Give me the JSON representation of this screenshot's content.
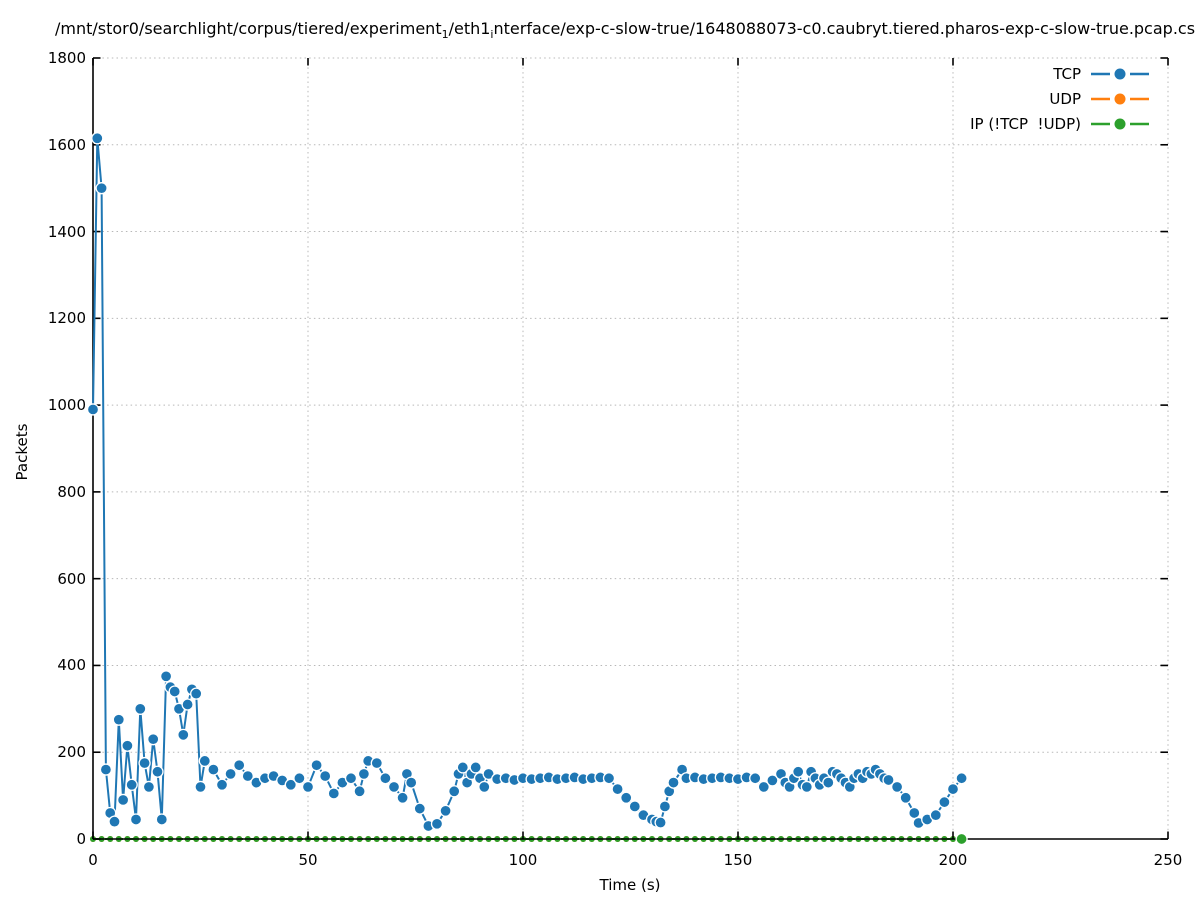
{
  "figure": {
    "title_parts": [
      {
        "text": "/mnt/stor0/searchlight/corpus/tiered/experiment",
        "sub": false
      },
      {
        "text": "1",
        "sub": true
      },
      {
        "text": "/eth1",
        "sub": false
      },
      {
        "text": "i",
        "sub": true
      },
      {
        "text": "nterface/exp-c-slow-true/1648088073-c0.caubryt.tiered.pharos-exp-c-slow-true.pcap.cs",
        "sub": false
      }
    ],
    "xlabel": "Time (s)",
    "ylabel": "Packets"
  },
  "chart_data": {
    "type": "line",
    "title": "/mnt/stor0/searchlight/corpus/tiered/experiment₁/eth1ᵢnterface/exp-c-slow-true/1648088073-c0.caubryt.tiered.pharos-exp-c-slow-true.pcap.cs",
    "xlabel": "Time (s)",
    "ylabel": "Packets",
    "xlim": [
      0,
      250
    ],
    "ylim": [
      0,
      1800
    ],
    "xticks": [
      0,
      50,
      100,
      150,
      200,
      250
    ],
    "yticks": [
      0,
      200,
      400,
      600,
      800,
      1000,
      1200,
      1400,
      1600,
      1800
    ],
    "grid": true,
    "grid_style": "dotted",
    "legend_position": "top-right-inside",
    "colors": {
      "tcp": "#1f77b4",
      "udp": "#ff7f0e",
      "ip_other": "#2ca02c",
      "grid": "#b8b8b8",
      "axis": "#000000",
      "marker_edge": "#ffffff"
    },
    "series": [
      {
        "name": "TCP",
        "color_key": "tcp",
        "style": "line-with-dots",
        "points": [
          [
            0,
            990
          ],
          [
            1,
            1615
          ],
          [
            2,
            1500
          ],
          [
            3,
            160
          ],
          [
            4,
            60
          ],
          [
            5,
            40
          ],
          [
            6,
            275
          ],
          [
            7,
            90
          ],
          [
            8,
            215
          ],
          [
            9,
            125
          ],
          [
            10,
            45
          ],
          [
            11,
            300
          ],
          [
            12,
            175
          ],
          [
            13,
            120
          ],
          [
            14,
            230
          ],
          [
            15,
            155
          ],
          [
            16,
            45
          ],
          [
            17,
            375
          ],
          [
            18,
            350
          ],
          [
            19,
            340
          ],
          [
            20,
            300
          ],
          [
            21,
            240
          ],
          [
            22,
            310
          ],
          [
            23,
            345
          ],
          [
            24,
            335
          ],
          [
            25,
            120
          ],
          [
            26,
            180
          ],
          [
            28,
            160
          ],
          [
            30,
            125
          ],
          [
            32,
            150
          ],
          [
            34,
            170
          ],
          [
            36,
            145
          ],
          [
            38,
            130
          ],
          [
            40,
            140
          ],
          [
            42,
            145
          ],
          [
            44,
            135
          ],
          [
            46,
            125
          ],
          [
            48,
            140
          ],
          [
            50,
            120
          ],
          [
            52,
            170
          ],
          [
            54,
            145
          ],
          [
            56,
            105
          ],
          [
            58,
            130
          ],
          [
            60,
            140
          ],
          [
            62,
            110
          ],
          [
            63,
            150
          ],
          [
            64,
            180
          ],
          [
            66,
            175
          ],
          [
            68,
            140
          ],
          [
            70,
            120
          ],
          [
            72,
            95
          ],
          [
            73,
            150
          ],
          [
            74,
            130
          ],
          [
            76,
            70
          ],
          [
            78,
            30
          ],
          [
            80,
            35
          ],
          [
            82,
            65
          ],
          [
            84,
            110
          ],
          [
            85,
            150
          ],
          [
            86,
            165
          ],
          [
            87,
            130
          ],
          [
            88,
            150
          ],
          [
            89,
            165
          ],
          [
            90,
            140
          ],
          [
            91,
            120
          ],
          [
            92,
            150
          ],
          [
            94,
            138
          ],
          [
            96,
            140
          ],
          [
            98,
            136
          ],
          [
            100,
            140
          ],
          [
            102,
            138
          ],
          [
            104,
            140
          ],
          [
            106,
            142
          ],
          [
            108,
            138
          ],
          [
            110,
            140
          ],
          [
            112,
            142
          ],
          [
            114,
            138
          ],
          [
            116,
            140
          ],
          [
            118,
            142
          ],
          [
            120,
            140
          ],
          [
            122,
            115
          ],
          [
            124,
            95
          ],
          [
            126,
            75
          ],
          [
            128,
            55
          ],
          [
            130,
            45
          ],
          [
            131,
            40
          ],
          [
            132,
            38
          ],
          [
            133,
            75
          ],
          [
            134,
            110
          ],
          [
            135,
            130
          ],
          [
            137,
            160
          ],
          [
            138,
            140
          ],
          [
            140,
            142
          ],
          [
            142,
            138
          ],
          [
            144,
            140
          ],
          [
            146,
            142
          ],
          [
            148,
            140
          ],
          [
            150,
            138
          ],
          [
            152,
            142
          ],
          [
            154,
            140
          ],
          [
            156,
            120
          ],
          [
            158,
            135
          ],
          [
            160,
            150
          ],
          [
            161,
            130
          ],
          [
            162,
            120
          ],
          [
            163,
            140
          ],
          [
            164,
            155
          ],
          [
            165,
            125
          ],
          [
            166,
            120
          ],
          [
            167,
            155
          ],
          [
            168,
            140
          ],
          [
            169,
            125
          ],
          [
            170,
            140
          ],
          [
            171,
            130
          ],
          [
            172,
            155
          ],
          [
            173,
            150
          ],
          [
            174,
            140
          ],
          [
            175,
            130
          ],
          [
            176,
            120
          ],
          [
            177,
            140
          ],
          [
            178,
            150
          ],
          [
            179,
            140
          ],
          [
            180,
            155
          ],
          [
            181,
            150
          ],
          [
            182,
            160
          ],
          [
            183,
            150
          ],
          [
            184,
            140
          ],
          [
            185,
            136
          ],
          [
            187,
            120
          ],
          [
            189,
            95
          ],
          [
            191,
            60
          ],
          [
            192,
            37
          ],
          [
            194,
            45
          ],
          [
            196,
            55
          ],
          [
            198,
            85
          ],
          [
            200,
            115
          ],
          [
            202,
            140
          ]
        ]
      },
      {
        "name": "UDP",
        "color_key": "udp",
        "style": "dashed-line-with-dots",
        "all_zero": true,
        "t_start": 0,
        "t_end": 202,
        "t_step": 2,
        "note": "constant 0; hidden beneath IP series and x-axis"
      },
      {
        "name": "IP (!TCP  !UDP)",
        "color_key": "ip_other",
        "style": "dashed-line-with-dots",
        "all_zero": true,
        "t_start": 0,
        "t_end": 202,
        "t_step": 2,
        "note": "constant 0 along x-axis; final point marker visible at t=202"
      }
    ]
  }
}
